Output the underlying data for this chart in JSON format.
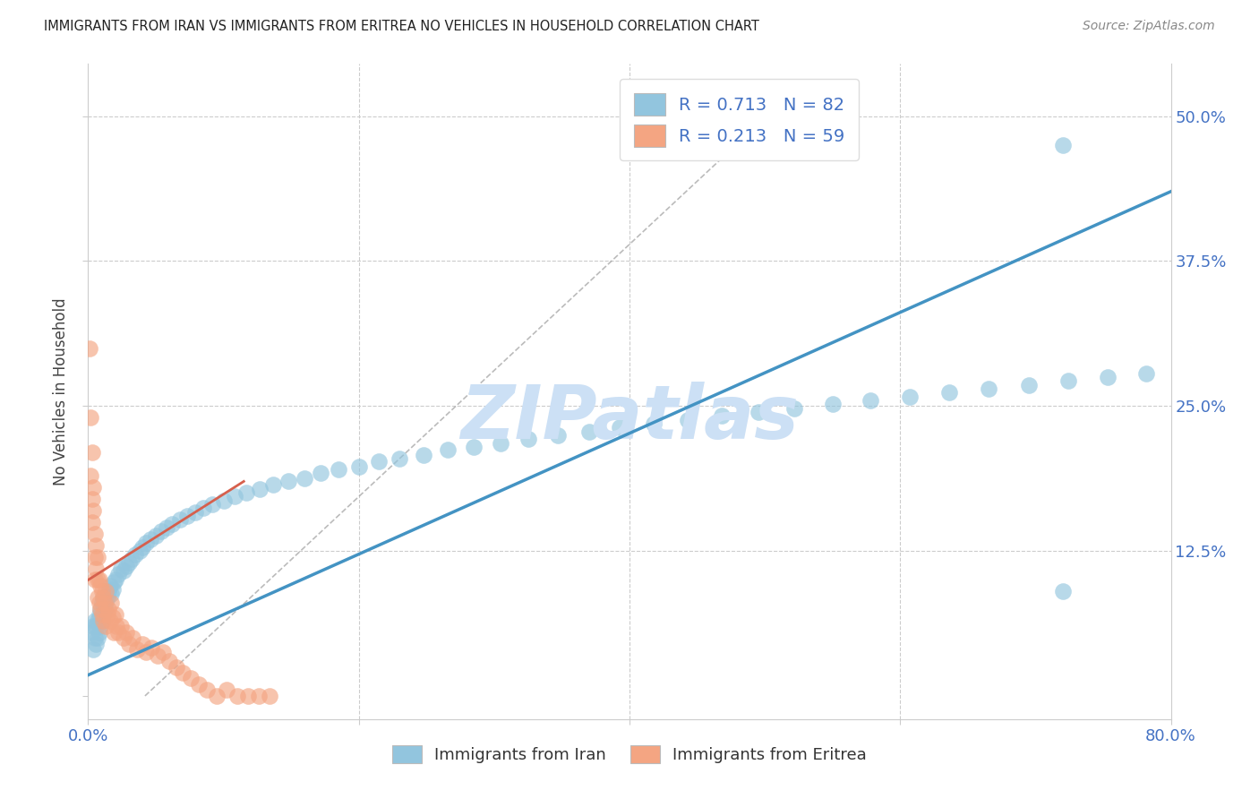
{
  "title": "IMMIGRANTS FROM IRAN VS IMMIGRANTS FROM ERITREA NO VEHICLES IN HOUSEHOLD CORRELATION CHART",
  "source": "Source: ZipAtlas.com",
  "ylabel": "No Vehicles in Household",
  "xlim": [
    0.0,
    0.8
  ],
  "ylim": [
    -0.02,
    0.545
  ],
  "iran_R": 0.713,
  "iran_N": 82,
  "eritrea_R": 0.213,
  "eritrea_N": 59,
  "iran_color": "#92c5de",
  "eritrea_color": "#f4a582",
  "iran_line_color": "#4393c3",
  "eritrea_line_color": "#d6604d",
  "watermark": "ZIPatlas",
  "watermark_color": "#cce0f5",
  "background_color": "#ffffff",
  "grid_color": "#cccccc",
  "iran_scatter_x": [
    0.003,
    0.004,
    0.004,
    0.005,
    0.005,
    0.006,
    0.006,
    0.007,
    0.007,
    0.008,
    0.008,
    0.009,
    0.009,
    0.01,
    0.01,
    0.011,
    0.011,
    0.012,
    0.013,
    0.014,
    0.015,
    0.016,
    0.017,
    0.018,
    0.019,
    0.02,
    0.022,
    0.024,
    0.026,
    0.028,
    0.03,
    0.032,
    0.035,
    0.038,
    0.04,
    0.043,
    0.046,
    0.05,
    0.054,
    0.058,
    0.062,
    0.068,
    0.073,
    0.079,
    0.085,
    0.092,
    0.1,
    0.108,
    0.117,
    0.127,
    0.137,
    0.148,
    0.16,
    0.172,
    0.185,
    0.2,
    0.215,
    0.23,
    0.248,
    0.266,
    0.285,
    0.305,
    0.325,
    0.347,
    0.37,
    0.393,
    0.418,
    0.443,
    0.468,
    0.495,
    0.522,
    0.55,
    0.578,
    0.607,
    0.636,
    0.665,
    0.695,
    0.724,
    0.753,
    0.782,
    0.72,
    0.72
  ],
  "iran_scatter_y": [
    0.055,
    0.06,
    0.04,
    0.05,
    0.065,
    0.045,
    0.06,
    0.05,
    0.065,
    0.055,
    0.07,
    0.06,
    0.075,
    0.065,
    0.08,
    0.07,
    0.085,
    0.075,
    0.08,
    0.085,
    0.09,
    0.095,
    0.088,
    0.092,
    0.098,
    0.1,
    0.105,
    0.11,
    0.108,
    0.112,
    0.115,
    0.118,
    0.122,
    0.125,
    0.128,
    0.132,
    0.135,
    0.138,
    0.142,
    0.145,
    0.148,
    0.152,
    0.155,
    0.158,
    0.162,
    0.165,
    0.168,
    0.172,
    0.175,
    0.178,
    0.182,
    0.185,
    0.188,
    0.192,
    0.195,
    0.198,
    0.202,
    0.205,
    0.208,
    0.212,
    0.215,
    0.218,
    0.222,
    0.225,
    0.228,
    0.232,
    0.235,
    0.238,
    0.242,
    0.245,
    0.248,
    0.252,
    0.255,
    0.258,
    0.262,
    0.265,
    0.268,
    0.272,
    0.275,
    0.278,
    0.475,
    0.09
  ],
  "eritrea_scatter_x": [
    0.001,
    0.002,
    0.002,
    0.003,
    0.003,
    0.003,
    0.004,
    0.004,
    0.005,
    0.005,
    0.005,
    0.006,
    0.006,
    0.007,
    0.007,
    0.007,
    0.008,
    0.008,
    0.009,
    0.009,
    0.01,
    0.01,
    0.011,
    0.011,
    0.012,
    0.013,
    0.013,
    0.014,
    0.015,
    0.016,
    0.017,
    0.018,
    0.019,
    0.02,
    0.021,
    0.022,
    0.024,
    0.026,
    0.028,
    0.03,
    0.033,
    0.036,
    0.04,
    0.043,
    0.047,
    0.051,
    0.055,
    0.06,
    0.065,
    0.07,
    0.076,
    0.082,
    0.088,
    0.095,
    0.102,
    0.11,
    0.118,
    0.126,
    0.134
  ],
  "eritrea_scatter_y": [
    0.3,
    0.24,
    0.19,
    0.21,
    0.17,
    0.15,
    0.18,
    0.16,
    0.14,
    0.12,
    0.1,
    0.13,
    0.11,
    0.12,
    0.1,
    0.085,
    0.1,
    0.08,
    0.095,
    0.075,
    0.09,
    0.07,
    0.085,
    0.065,
    0.08,
    0.09,
    0.06,
    0.07,
    0.075,
    0.065,
    0.08,
    0.068,
    0.055,
    0.07,
    0.06,
    0.055,
    0.06,
    0.05,
    0.055,
    0.045,
    0.05,
    0.04,
    0.045,
    0.038,
    0.042,
    0.035,
    0.038,
    0.03,
    0.025,
    0.02,
    0.015,
    0.01,
    0.005,
    0.0,
    0.005,
    0.0,
    0.0,
    0.0,
    0.0
  ],
  "iran_line_x0": 0.0,
  "iran_line_x1": 0.8,
  "iran_line_y0": 0.018,
  "iran_line_y1": 0.435,
  "eritrea_line_x0": 0.0,
  "eritrea_line_x1": 0.115,
  "eritrea_line_y0": 0.1,
  "eritrea_line_y1": 0.185,
  "diag_line_x0": 0.042,
  "diag_line_x1": 0.52,
  "diag_line_y0": 0.0,
  "diag_line_y1": 0.52
}
